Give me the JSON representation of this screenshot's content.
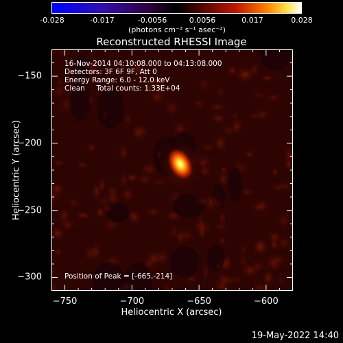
{
  "colorbar": {
    "ticks": [
      "-0.028",
      "-0.017",
      "-0.0056",
      "0.0056",
      "0.017",
      "0.028"
    ],
    "unit": "(photons cm⁻² s⁻¹ asec⁻²)"
  },
  "info": {
    "line1": "16-Nov-2014 04:10:08.000 to 04:13:08.000",
    "line2": "Detectors: 3F 6F 9F, Att 0",
    "line3": "Energy Range: 6.0 - 12.0 keV",
    "line4": "Clean     Total counts: 1.33E+04",
    "peak": "Position of Peak = [-665,-214]"
  },
  "footer": {
    "timestamp": "19-May-2022 14:40"
  },
  "chart_data": {
    "type": "heatmap",
    "title": "Reconstructed RHESSI Image",
    "xlabel": "Heliocentric X (arcsec)",
    "ylabel": "Heliocentric Y (arcsec)",
    "xlim": [
      -760,
      -580
    ],
    "ylim": [
      -310,
      -130
    ],
    "xticks": [
      -750,
      -700,
      -650,
      -600
    ],
    "yticks": [
      -150,
      -200,
      -250,
      -300
    ],
    "colorscale_range": [
      -0.028,
      0.028
    ],
    "peak": {
      "x": -665,
      "y": -214,
      "value": 0.028
    }
  }
}
